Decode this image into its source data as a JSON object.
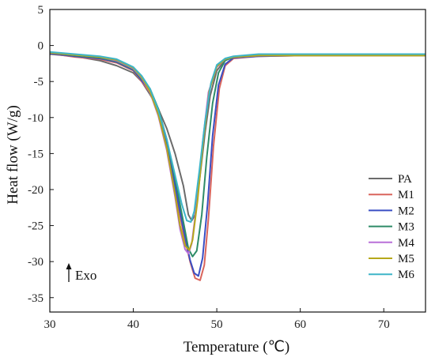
{
  "chart_data": {
    "type": "line",
    "xlabel": "Temperature (℃)",
    "ylabel": "Heat flow (W/g)",
    "xlim": [
      30,
      75
    ],
    "ylim": [
      -37,
      5
    ],
    "xticks": [
      30,
      40,
      50,
      60,
      70
    ],
    "yticks": [
      5,
      0,
      -5,
      -10,
      -15,
      -20,
      -25,
      -30,
      -35
    ],
    "legend_position": "bottom-right",
    "annotation": "Exo",
    "series": [
      {
        "name": "PA",
        "color": "#6b6b6b",
        "x": [
          30,
          33,
          36,
          38,
          40,
          41,
          42,
          43,
          44,
          45,
          46,
          46.6,
          47,
          47.4,
          48,
          48.6,
          49.2,
          50,
          51,
          52,
          55,
          60,
          65,
          70,
          75
        ],
        "y": [
          -1.2,
          -1.5,
          -2.1,
          -2.8,
          -3.8,
          -5.0,
          -6.8,
          -8.8,
          -11.5,
          -15.0,
          -19.5,
          -23.5,
          -24.3,
          -23.5,
          -18.0,
          -12.0,
          -7.0,
          -3.5,
          -2.0,
          -1.6,
          -1.4,
          -1.4,
          -1.4,
          -1.4,
          -1.4
        ]
      },
      {
        "name": "M1",
        "color": "#d9645c",
        "x": [
          30,
          33,
          36,
          38,
          40,
          42,
          43,
          44,
          45,
          46,
          46.8,
          47.4,
          48.0,
          48.5,
          49.0,
          49.6,
          50.3,
          51,
          52,
          55,
          60,
          65,
          70,
          75
        ],
        "y": [
          -1.1,
          -1.6,
          -1.9,
          -2.4,
          -3.5,
          -6.5,
          -9.5,
          -14.0,
          -20.0,
          -26.0,
          -30.0,
          -32.3,
          -32.6,
          -30.5,
          -24.0,
          -14.0,
          -6.0,
          -2.8,
          -1.8,
          -1.5,
          -1.4,
          -1.4,
          -1.4,
          -1.4
        ]
      },
      {
        "name": "M2",
        "color": "#3a4fc4",
        "x": [
          30,
          33,
          36,
          38,
          40,
          42,
          43,
          44,
          45,
          46,
          46.8,
          47.3,
          47.8,
          48.3,
          48.9,
          49.5,
          50.2,
          51,
          52,
          55,
          60,
          65,
          70,
          75
        ],
        "y": [
          -1.1,
          -1.5,
          -1.8,
          -2.3,
          -3.4,
          -6.3,
          -9.3,
          -13.7,
          -19.5,
          -25.5,
          -29.8,
          -31.6,
          -32.0,
          -29.5,
          -22.0,
          -12.5,
          -5.5,
          -2.6,
          -1.7,
          -1.5,
          -1.4,
          -1.4,
          -1.4,
          -1.4
        ]
      },
      {
        "name": "M3",
        "color": "#2e8b68",
        "x": [
          30,
          33,
          36,
          38,
          40,
          42,
          43,
          44,
          45,
          46,
          46.6,
          47.1,
          47.6,
          48.2,
          48.8,
          49.5,
          50.2,
          51,
          52,
          55,
          60,
          65,
          70,
          75
        ],
        "y": [
          -1.0,
          -1.4,
          -1.7,
          -2.2,
          -3.3,
          -6.0,
          -8.8,
          -13.0,
          -18.5,
          -24.5,
          -28.2,
          -29.3,
          -28.5,
          -23.5,
          -15.5,
          -8.0,
          -3.8,
          -2.1,
          -1.6,
          -1.4,
          -1.4,
          -1.4,
          -1.4,
          -1.4
        ]
      },
      {
        "name": "M4",
        "color": "#b86fd8",
        "x": [
          30,
          33,
          36,
          38,
          40,
          41,
          42,
          43,
          44,
          45,
          45.6,
          46.2,
          46.6,
          47.0,
          47.6,
          48.3,
          49.0,
          50,
          51,
          52,
          55,
          60,
          65,
          70,
          75
        ],
        "y": [
          -1.0,
          -1.3,
          -1.6,
          -2.1,
          -3.2,
          -4.5,
          -6.5,
          -9.8,
          -14.5,
          -21.0,
          -25.5,
          -28.3,
          -28.9,
          -27.5,
          -22.0,
          -13.5,
          -6.5,
          -3.0,
          -1.9,
          -1.6,
          -1.4,
          -1.4,
          -1.4,
          -1.4,
          -1.4
        ]
      },
      {
        "name": "M5",
        "color": "#b6a81a",
        "x": [
          30,
          33,
          36,
          38,
          40,
          41,
          42,
          43,
          44,
          45,
          45.6,
          46.2,
          46.7,
          47.1,
          47.7,
          48.4,
          49.1,
          50,
          51,
          52,
          55,
          60,
          65,
          70,
          75
        ],
        "y": [
          -1.0,
          -1.3,
          -1.6,
          -2.0,
          -3.1,
          -4.4,
          -6.4,
          -9.6,
          -14.2,
          -20.6,
          -25.0,
          -27.8,
          -28.4,
          -27.0,
          -21.5,
          -13.0,
          -6.3,
          -2.9,
          -1.9,
          -1.6,
          -1.4,
          -1.4,
          -1.4,
          -1.4,
          -1.4
        ]
      },
      {
        "name": "M6",
        "color": "#3db5c8",
        "x": [
          30,
          33,
          36,
          38,
          40,
          41,
          42,
          43,
          44,
          45,
          45.8,
          46.4,
          46.9,
          47.3,
          47.9,
          48.6,
          49.3,
          50,
          51,
          52,
          55,
          60,
          65,
          70,
          75
        ],
        "y": [
          -0.9,
          -1.2,
          -1.5,
          -1.9,
          -3.0,
          -4.2,
          -6.0,
          -9.0,
          -13.0,
          -18.0,
          -22.0,
          -24.3,
          -24.5,
          -23.0,
          -17.5,
          -10.5,
          -5.2,
          -2.7,
          -1.8,
          -1.5,
          -1.2,
          -1.2,
          -1.2,
          -1.2,
          -1.2
        ]
      }
    ]
  }
}
